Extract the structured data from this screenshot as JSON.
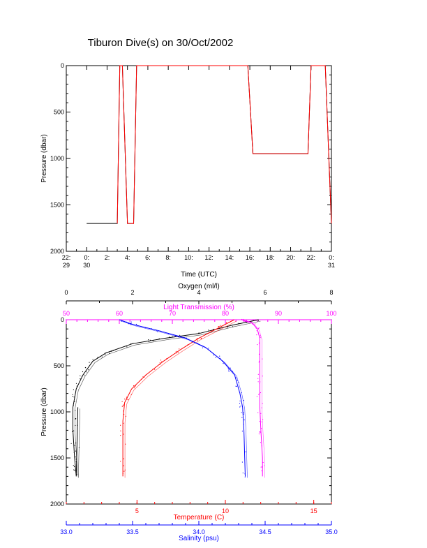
{
  "title": "Tiburon Dive(s) on 30/Oct/2002",
  "colors": {
    "black": "#000000",
    "red": "#ff0000",
    "blue": "#0000ff",
    "magenta": "#ff00ff",
    "brown": "#8b0000"
  },
  "chart_data": [
    {
      "type": "line",
      "title": "Tiburon Dive(s) on 30/Oct/2002",
      "xlabel": "Time (UTC)",
      "ylabel": "Pressure (dbar)",
      "x_unit": "hours from 22:00 29 Oct (UTC)",
      "xlim": [
        0,
        26
      ],
      "ylim": [
        2000,
        0
      ],
      "x_ticks": [
        {
          "v": 0,
          "l1": "22:",
          "l2": "29"
        },
        {
          "v": 2,
          "l1": "0:",
          "l2": "30"
        },
        {
          "v": 4,
          "l1": "2:",
          "l2": ""
        },
        {
          "v": 6,
          "l1": "4:",
          "l2": ""
        },
        {
          "v": 8,
          "l1": "6:",
          "l2": ""
        },
        {
          "v": 10,
          "l1": "8:",
          "l2": ""
        },
        {
          "v": 12,
          "l1": "10:",
          "l2": ""
        },
        {
          "v": 14,
          "l1": "12:",
          "l2": ""
        },
        {
          "v": 16,
          "l1": "14:",
          "l2": ""
        },
        {
          "v": 18,
          "l1": "16:",
          "l2": ""
        },
        {
          "v": 20,
          "l1": "18:",
          "l2": ""
        },
        {
          "v": 22,
          "l1": "20:",
          "l2": ""
        },
        {
          "v": 24,
          "l1": "22:",
          "l2": ""
        },
        {
          "v": 26,
          "l1": "0:",
          "l2": "31"
        }
      ],
      "y_ticks": [
        0,
        500,
        1000,
        1500,
        2000
      ],
      "series": [
        {
          "color": "#000000",
          "x": [
            2.0,
            4.5,
            5.0,
            5.25,
            5.5,
            6.0,
            6.3,
            6.6,
            6.9,
            8.0,
            10.0,
            12.0,
            14.0,
            16.0,
            17.5,
            17.8,
            18.3,
            20.0,
            22.0,
            23.7,
            24.0,
            25.0,
            25.4,
            26.0
          ],
          "y": [
            1700,
            1700,
            1700,
            0,
            0,
            1700,
            1700,
            1700,
            0,
            0,
            0,
            0,
            0,
            0,
            0,
            0,
            950,
            950,
            950,
            950,
            0,
            0,
            0,
            1700
          ]
        },
        {
          "color": "#ff0000",
          "x": [
            5.0,
            5.25,
            5.5,
            6.0,
            6.6,
            6.9,
            8.0,
            10.0,
            12.0,
            14.0,
            16.0,
            17.5,
            17.8,
            18.3,
            23.7,
            24.0,
            25.0,
            25.4,
            26.0
          ],
          "y": [
            1700,
            0,
            0,
            1700,
            1700,
            0,
            0,
            0,
            0,
            0,
            0,
            0,
            0,
            950,
            950,
            0,
            0,
            0,
            1700
          ]
        }
      ]
    },
    {
      "type": "line",
      "ylabel": "Pressure (dbar)",
      "ylim": [
        2000,
        0
      ],
      "y_ticks": [
        0,
        500,
        1000,
        1500,
        2000
      ],
      "axes": [
        {
          "id": "oxygen",
          "label": "Oxygen (ml/l)",
          "range": [
            0,
            8
          ],
          "ticks": [
            0,
            2,
            4,
            6,
            8
          ],
          "tick_labels": [
            "0",
            "2",
            "4",
            "6",
            "8"
          ],
          "color": "#000000"
        },
        {
          "id": "light",
          "label": "Light Transmission (%)",
          "range": [
            50,
            100
          ],
          "ticks": [
            50,
            60,
            70,
            80,
            90,
            100
          ],
          "tick_labels": [
            "50",
            "60",
            "70",
            "80",
            "90",
            "100"
          ],
          "color": "#ff00ff"
        },
        {
          "id": "temperature",
          "label": "Temperature (C)",
          "range": [
            1,
            16
          ],
          "ticks": [
            5,
            10,
            15
          ],
          "tick_labels": [
            "5",
            "10",
            "15"
          ],
          "color": "#ff0000"
        },
        {
          "id": "salinity",
          "label": "Salinity (psu)",
          "range": [
            33.0,
            35.0
          ],
          "ticks": [
            33.0,
            33.5,
            34.0,
            34.5,
            35.0
          ],
          "tick_labels": [
            "33.0",
            "33.5",
            "34.0",
            "34.5",
            "35.0"
          ],
          "color": "#0000ff"
        }
      ],
      "series": [
        {
          "axis": "oxygen",
          "color": "#000000",
          "x": [
            5.8,
            5.0,
            4.0,
            3.0,
            2.0,
            1.2,
            0.8,
            0.5,
            0.3,
            0.2,
            0.2,
            0.25,
            0.3,
            0.35
          ],
          "y": [
            0,
            60,
            150,
            200,
            260,
            360,
            450,
            600,
            750,
            950,
            1200,
            1500,
            1700,
            950
          ]
        },
        {
          "axis": "light",
          "color": "#ff00ff",
          "x": [
            83,
            85,
            86,
            86.5,
            86.5,
            86.5,
            86.5,
            86.7,
            87,
            87
          ],
          "y": [
            0,
            30,
            100,
            200,
            500,
            800,
            950,
            1200,
            1500,
            1700
          ]
        },
        {
          "axis": "temperature",
          "color": "#ff0000",
          "x": [
            10.5,
            9.5,
            8.5,
            7.5,
            6.5,
            5.5,
            4.7,
            4.3,
            4.2,
            4.2,
            4.2
          ],
          "y": [
            0,
            100,
            200,
            320,
            450,
            600,
            750,
            900,
            1100,
            1400,
            1700
          ]
        },
        {
          "axis": "salinity",
          "color": "#0000ff",
          "x": [
            33.4,
            33.5,
            33.7,
            33.9,
            34.05,
            34.18,
            34.27,
            34.31,
            34.33,
            34.34,
            34.35
          ],
          "y": [
            0,
            50,
            120,
            200,
            300,
            450,
            600,
            800,
            950,
            1200,
            1700
          ]
        }
      ]
    }
  ]
}
